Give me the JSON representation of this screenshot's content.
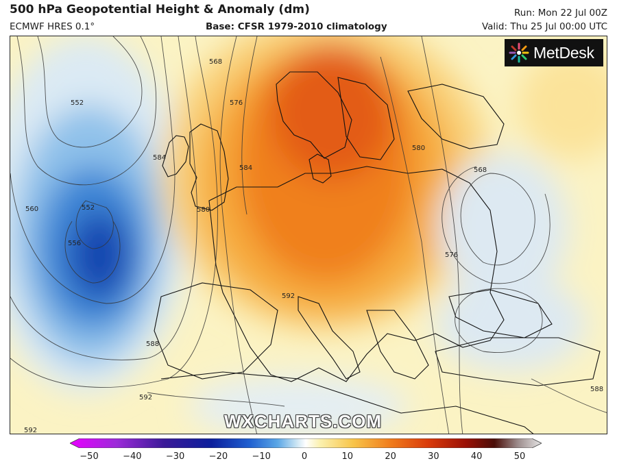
{
  "header": {
    "title": "500 hPa Geopotential Height & Anomaly (dm)",
    "model": "ECMWF HRES 0.1°",
    "base": "Base: CFSR 1979-2010 climatology",
    "run": "Run: Mon 22 Jul 00Z",
    "valid": "Valid: Thu 25 Jul 00:00 UTC"
  },
  "logo": {
    "text": "MetDesk"
  },
  "watermark": "WXCHARTS.COM",
  "contour_labels": [
    "552",
    "568",
    "576",
    "584",
    "560",
    "552",
    "556",
    "584",
    "580",
    "592",
    "588",
    "592",
    "580",
    "568",
    "576",
    "588",
    "592"
  ],
  "colorbar": {
    "ticks": [
      "−50",
      "−40",
      "−30",
      "−20",
      "−10",
      "0",
      "10",
      "20",
      "30",
      "40",
      "50"
    ],
    "colors": [
      "#e800ff",
      "#9b2bd8",
      "#3a1a98",
      "#0c1f9c",
      "#1f5fd0",
      "#5aa6e6",
      "#c9e4f3",
      "#ffffff",
      "#fbf1b0",
      "#f8c54a",
      "#f07c1c",
      "#d93a0a",
      "#9a1006",
      "#4a0e08",
      "#9d8d8d",
      "#e6e6e6"
    ]
  }
}
